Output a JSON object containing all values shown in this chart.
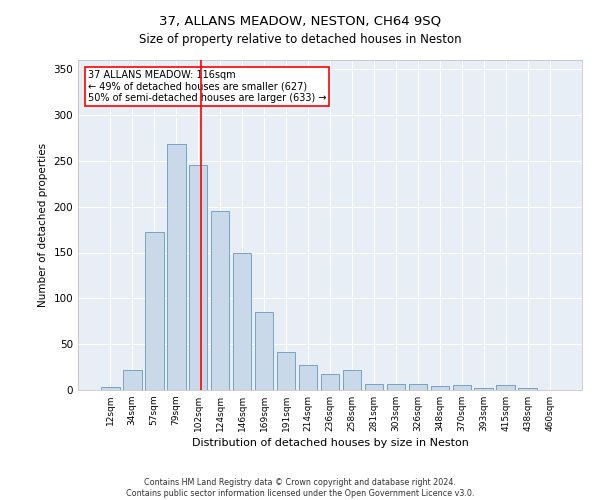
{
  "title": "37, ALLANS MEADOW, NESTON, CH64 9SQ",
  "subtitle": "Size of property relative to detached houses in Neston",
  "xlabel": "Distribution of detached houses by size in Neston",
  "ylabel": "Number of detached properties",
  "bar_color": "#c9d9ea",
  "bar_edge_color": "#6699bb",
  "background_color": "#e8eef5",
  "grid_color": "#ffffff",
  "categories": [
    "12sqm",
    "34sqm",
    "57sqm",
    "79sqm",
    "102sqm",
    "124sqm",
    "146sqm",
    "169sqm",
    "191sqm",
    "214sqm",
    "236sqm",
    "258sqm",
    "281sqm",
    "303sqm",
    "326sqm",
    "348sqm",
    "370sqm",
    "393sqm",
    "415sqm",
    "438sqm",
    "460sqm"
  ],
  "values": [
    3,
    22,
    172,
    268,
    245,
    195,
    150,
    85,
    42,
    27,
    18,
    22,
    7,
    7,
    7,
    4,
    6,
    2,
    5,
    2,
    0
  ],
  "ylim": [
    0,
    360
  ],
  "yticks": [
    0,
    50,
    100,
    150,
    200,
    250,
    300,
    350
  ],
  "property_line_label": "37 ALLANS MEADOW: 116sqm",
  "annotation_line1": "← 49% of detached houses are smaller (627)",
  "annotation_line2": "50% of semi-detached houses are larger (633) →",
  "footer_line1": "Contains HM Land Registry data © Crown copyright and database right 2024.",
  "footer_line2": "Contains public sector information licensed under the Open Government Licence v3.0."
}
